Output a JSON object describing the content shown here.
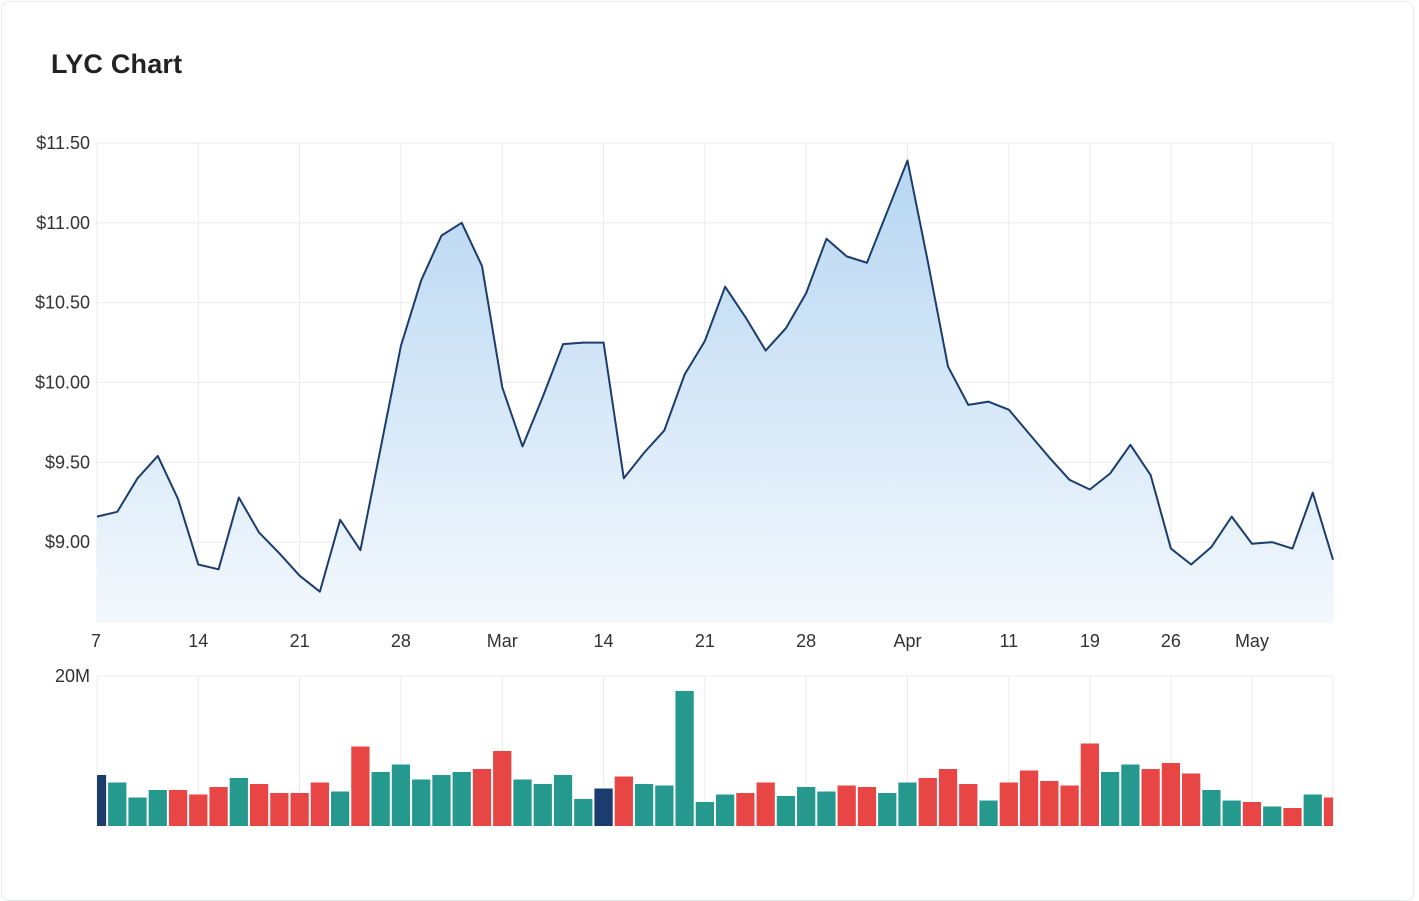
{
  "title": "LYC Chart",
  "colors": {
    "line": "#1b3d6e",
    "fill_top": "#b7d6f2",
    "fill_bottom": "#f3f8fd",
    "grid": "#e9ebee",
    "volume_up": "#26998f",
    "volume_down": "#e84545",
    "volume_highlight": "#1b3d6e"
  },
  "chart_data": [
    {
      "type": "area",
      "title": "LYC Chart",
      "ylim": [
        8.5,
        11.5
      ],
      "y_ticks": [
        9.0,
        9.5,
        10.0,
        10.5,
        11.0,
        11.5
      ],
      "y_tick_labels": [
        "$9.00",
        "$9.50",
        "$10.00",
        "$10.50",
        "$11.00",
        "$11.50"
      ],
      "x_tick_labels": [
        {
          "label": "7",
          "index": 0
        },
        {
          "label": "14",
          "index": 5
        },
        {
          "label": "21",
          "index": 10
        },
        {
          "label": "28",
          "index": 15
        },
        {
          "label": "Mar",
          "index": 20
        },
        {
          "label": "14",
          "index": 25
        },
        {
          "label": "21",
          "index": 30
        },
        {
          "label": "28",
          "index": 35
        },
        {
          "label": "Apr",
          "index": 40
        },
        {
          "label": "11",
          "index": 45
        },
        {
          "label": "19",
          "index": 49
        },
        {
          "label": "26",
          "index": 53
        },
        {
          "label": "May",
          "index": 57
        }
      ],
      "grid": true,
      "values": [
        9.16,
        9.19,
        9.4,
        9.54,
        9.27,
        8.86,
        8.83,
        9.28,
        9.06,
        8.93,
        8.79,
        8.69,
        9.14,
        8.95,
        9.59,
        10.23,
        10.64,
        10.92,
        11.0,
        10.73,
        9.97,
        9.6,
        9.91,
        10.24,
        10.25,
        10.25,
        9.4,
        9.56,
        9.7,
        10.05,
        10.26,
        10.6,
        10.41,
        10.2,
        10.34,
        10.56,
        10.9,
        10.79,
        10.75,
        11.07,
        11.39,
        10.76,
        10.1,
        9.86,
        9.88,
        9.83,
        9.68,
        9.53,
        9.39,
        9.33,
        9.43,
        9.61,
        9.42,
        8.96,
        8.86,
        8.97,
        9.16,
        8.99,
        9.0,
        8.96,
        9.31,
        8.89
      ]
    },
    {
      "type": "bar",
      "ylim": [
        0,
        20
      ],
      "y_tick_labels": [
        "20M"
      ],
      "unit": "M",
      "values": [
        6.8,
        5.8,
        3.8,
        4.8,
        4.8,
        4.2,
        5.2,
        6.4,
        5.6,
        4.4,
        4.4,
        5.8,
        4.6,
        10.6,
        7.2,
        8.2,
        6.2,
        6.8,
        7.2,
        7.6,
        10.0,
        6.2,
        5.6,
        6.8,
        3.6,
        5.0,
        6.6,
        5.6,
        5.4,
        18.0,
        3.2,
        4.2,
        4.4,
        5.8,
        4.0,
        5.2,
        4.6,
        5.4,
        5.2,
        4.4,
        5.8,
        6.4,
        7.6,
        5.6,
        3.4,
        5.8,
        7.4,
        6.0,
        5.4,
        11.0,
        7.2,
        8.2,
        7.6,
        8.4,
        7.0,
        4.8,
        3.4,
        3.2,
        2.6,
        2.4,
        4.2,
        3.8
      ],
      "bar_types": [
        "h",
        "u",
        "u",
        "u",
        "d",
        "d",
        "d",
        "u",
        "d",
        "d",
        "d",
        "d",
        "u",
        "d",
        "u",
        "u",
        "u",
        "u",
        "u",
        "d",
        "d",
        "u",
        "u",
        "u",
        "u",
        "h",
        "d",
        "u",
        "u",
        "u",
        "u",
        "u",
        "d",
        "d",
        "u",
        "u",
        "u",
        "d",
        "d",
        "u",
        "u",
        "d",
        "d",
        "d",
        "u",
        "d",
        "d",
        "d",
        "d",
        "d",
        "u",
        "u",
        "d",
        "d",
        "d",
        "u",
        "u",
        "d",
        "u",
        "d",
        "u",
        "d"
      ]
    }
  ]
}
